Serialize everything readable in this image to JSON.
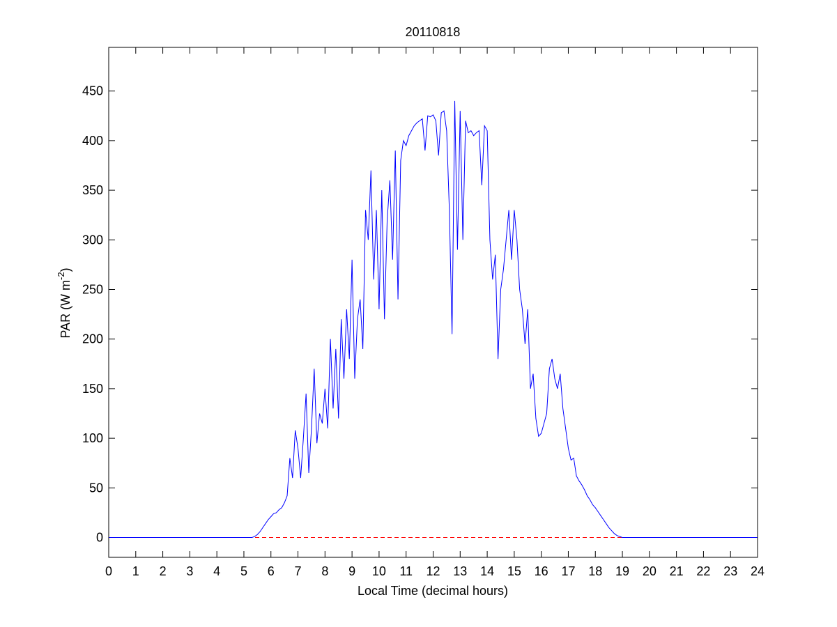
{
  "chart_data": {
    "type": "line",
    "title": "20110818",
    "xlabel": "Local Time (decimal hours)",
    "ylabel": [
      "PAR (W m",
      "-2",
      ")"
    ],
    "x": [
      0,
      5.3,
      5.4,
      5.5,
      5.6,
      5.7,
      5.8,
      5.9,
      6.0,
      6.1,
      6.2,
      6.3,
      6.4,
      6.5,
      6.6,
      6.7,
      6.8,
      6.9,
      7.0,
      7.1,
      7.2,
      7.3,
      7.4,
      7.5,
      7.6,
      7.7,
      7.8,
      7.9,
      8.0,
      8.1,
      8.2,
      8.3,
      8.4,
      8.5,
      8.6,
      8.7,
      8.8,
      8.9,
      9.0,
      9.1,
      9.2,
      9.3,
      9.4,
      9.5,
      9.6,
      9.7,
      9.8,
      9.9,
      10.0,
      10.1,
      10.2,
      10.3,
      10.4,
      10.5,
      10.6,
      10.7,
      10.8,
      10.9,
      11.0,
      11.1,
      11.2,
      11.3,
      11.4,
      11.5,
      11.6,
      11.7,
      11.8,
      11.9,
      12.0,
      12.1,
      12.2,
      12.3,
      12.4,
      12.5,
      12.6,
      12.7,
      12.8,
      12.9,
      13.0,
      13.1,
      13.2,
      13.3,
      13.4,
      13.5,
      13.6,
      13.7,
      13.8,
      13.9,
      14.0,
      14.1,
      14.2,
      14.3,
      14.4,
      14.5,
      14.6,
      14.7,
      14.8,
      14.9,
      15.0,
      15.1,
      15.2,
      15.3,
      15.4,
      15.5,
      15.6,
      15.7,
      15.8,
      15.9,
      16.0,
      16.1,
      16.2,
      16.3,
      16.4,
      16.5,
      16.6,
      16.7,
      16.8,
      16.9,
      17.0,
      17.1,
      17.2,
      17.3,
      17.4,
      17.5,
      17.6,
      17.7,
      17.8,
      17.9,
      18.0,
      18.1,
      18.2,
      18.3,
      18.4,
      18.5,
      18.6,
      18.7,
      18.8,
      18.9,
      19.0,
      24
    ],
    "series": [
      {
        "color": "#0000ff",
        "values": [
          0,
          0,
          1,
          3,
          6,
          10,
          14,
          18,
          21,
          24,
          25,
          28,
          30,
          35,
          42,
          80,
          60,
          108,
          90,
          60,
          100,
          145,
          65,
          110,
          170,
          95,
          125,
          115,
          150,
          110,
          200,
          130,
          190,
          120,
          220,
          160,
          230,
          180,
          280,
          160,
          220,
          240,
          190,
          330,
          300,
          370,
          260,
          330,
          230,
          350,
          220,
          320,
          360,
          280,
          390,
          240,
          380,
          400,
          395,
          405,
          410,
          415,
          418,
          420,
          422,
          390,
          425,
          424,
          426,
          420,
          385,
          428,
          430,
          410,
          330,
          205,
          440,
          290,
          430,
          300,
          420,
          408,
          410,
          405,
          408,
          410,
          355,
          415,
          410,
          300,
          260,
          285,
          180,
          250,
          270,
          300,
          330,
          280,
          330,
          300,
          250,
          230,
          195,
          230,
          150,
          165,
          120,
          102,
          105,
          115,
          125,
          170,
          180,
          160,
          150,
          165,
          130,
          110,
          90,
          78,
          80,
          62,
          57,
          53,
          48,
          42,
          38,
          33,
          30,
          26,
          22,
          18,
          14,
          10,
          7,
          4,
          2,
          1,
          0,
          0
        ]
      }
    ],
    "reference_lines": [
      {
        "y": 0,
        "color": "#ff0000",
        "style": "dashed"
      }
    ],
    "xlim": [
      0,
      24
    ],
    "xticks": [
      0,
      1,
      2,
      3,
      4,
      5,
      6,
      7,
      8,
      9,
      10,
      11,
      12,
      13,
      14,
      15,
      16,
      17,
      18,
      19,
      20,
      21,
      22,
      23,
      24
    ],
    "ylim": [
      -20,
      494
    ],
    "yticks": [
      0,
      50,
      100,
      150,
      200,
      250,
      300,
      350,
      400,
      450
    ],
    "grid": false
  }
}
